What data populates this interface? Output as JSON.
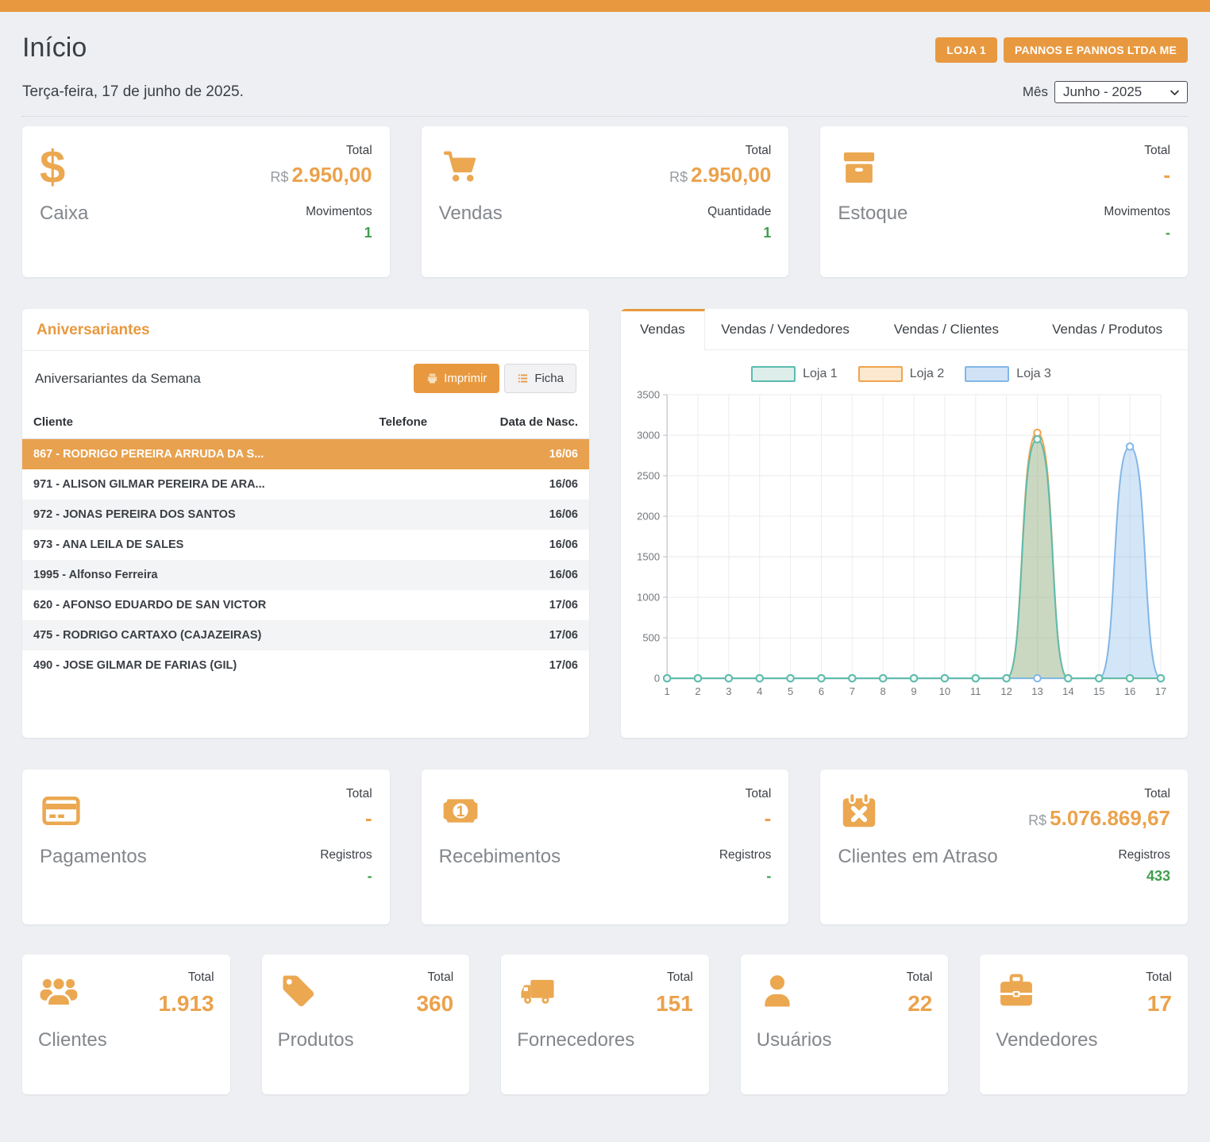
{
  "header": {
    "title": "Início",
    "date_line": "Terça-feira, 17 de junho de 2025.",
    "store_badge": "LOJA 1",
    "company_badge": "PANNOS E PANNOS LTDA ME",
    "month_label": "Mês",
    "month_selected": "Junho - 2025"
  },
  "cards_top": [
    {
      "icon": "dollar-icon",
      "label": "Caixa",
      "metric1_label": "Total",
      "metric1_prefix": "R$",
      "metric1_value": "2.950,00",
      "metric2_label": "Movimentos",
      "metric2_value": "1"
    },
    {
      "icon": "cart-icon",
      "label": "Vendas",
      "metric1_label": "Total",
      "metric1_prefix": "R$",
      "metric1_value": "2.950,00",
      "metric2_label": "Quantidade",
      "metric2_value": "1"
    },
    {
      "icon": "box-icon",
      "label": "Estoque",
      "metric1_label": "Total",
      "metric1_prefix": "",
      "metric1_value": "-",
      "metric2_label": "Movimentos",
      "metric2_value": "-"
    }
  ],
  "birthdays": {
    "panel_title": "Aniversariantes",
    "subtitle": "Aniversariantes da Semana",
    "print_button": "Imprimir",
    "ficha_button": "Ficha",
    "columns": {
      "client": "Cliente",
      "phone": "Telefone",
      "birth_date": "Data de Nasc."
    },
    "rows": [
      {
        "client": "867 - RODRIGO PEREIRA ARRUDA DA S...",
        "phone": "",
        "date": "16/06",
        "selected": true
      },
      {
        "client": "971 - ALISON GILMAR PEREIRA DE ARA...",
        "phone": "",
        "date": "16/06"
      },
      {
        "client": "972 - JONAS PEREIRA DOS SANTOS",
        "phone": "",
        "date": "16/06"
      },
      {
        "client": "973 - ANA LEILA DE SALES",
        "phone": "",
        "date": "16/06"
      },
      {
        "client": "1995 - Alfonso Ferreira",
        "phone": "",
        "date": "16/06"
      },
      {
        "client": "620 - AFONSO EDUARDO DE SAN VICTOR",
        "phone": "",
        "date": "17/06"
      },
      {
        "client": "475 - RODRIGO CARTAXO (CAJAZEIRAS)",
        "phone": "",
        "date": "17/06"
      },
      {
        "client": "490 - JOSE GILMAR DE FARIAS (GIL)",
        "phone": "",
        "date": "17/06"
      }
    ]
  },
  "sales_panel": {
    "tabs": [
      {
        "label": "Vendas",
        "active": true
      },
      {
        "label": "Vendas / Vendedores",
        "active": false
      },
      {
        "label": "Vendas / Clientes",
        "active": false
      },
      {
        "label": "Vendas / Produtos",
        "active": false
      }
    ]
  },
  "chart_data": {
    "type": "area",
    "x": [
      1,
      2,
      3,
      4,
      5,
      6,
      7,
      8,
      9,
      10,
      11,
      12,
      13,
      14,
      15,
      16,
      17
    ],
    "ylim": [
      0,
      3500
    ],
    "ytick_step": 500,
    "grid": true,
    "legend_position": "top",
    "series": [
      {
        "name": "Loja 1",
        "color": "#5cbcae",
        "fill_color": "rgba(92,188,174,0.30)",
        "legend_fill": "#ddeeea",
        "marker_fill": "#eef7f3",
        "values": [
          0,
          0,
          0,
          0,
          0,
          0,
          0,
          0,
          0,
          0,
          0,
          0,
          2950,
          0,
          0,
          0,
          0
        ]
      },
      {
        "name": "Loja 2",
        "color": "#f0a44e",
        "fill_color": "rgba(240,164,78,0.30)",
        "legend_fill": "#fce8ce",
        "marker_fill": "#ffffff",
        "values": [
          0,
          0,
          0,
          0,
          0,
          0,
          0,
          0,
          0,
          0,
          0,
          0,
          3030,
          0,
          0,
          0,
          0
        ]
      },
      {
        "name": "Loja 3",
        "color": "#82b6e7",
        "fill_color": "rgba(130,182,231,0.35)",
        "legend_fill": "#d0e3f6",
        "marker_fill": "#ffffff",
        "values": [
          0,
          0,
          0,
          0,
          0,
          0,
          0,
          0,
          0,
          0,
          0,
          0,
          0,
          0,
          0,
          2860,
          0
        ]
      }
    ]
  },
  "cards_mid": [
    {
      "icon": "credit-card-icon",
      "label": "Pagamentos",
      "metric1_label": "Total",
      "metric1_prefix": "",
      "metric1_value": "-",
      "metric2_label": "Registros",
      "metric2_value": "-"
    },
    {
      "icon": "banknote-icon",
      "label": "Recebimentos",
      "metric1_label": "Total",
      "metric1_prefix": "",
      "metric1_value": "-",
      "metric2_label": "Registros",
      "metric2_value": "-"
    },
    {
      "icon": "calendar-x-icon",
      "label": "Clientes em Atraso",
      "metric1_label": "Total",
      "metric1_prefix": "R$",
      "metric1_value": "5.076.869,67",
      "metric2_label": "Registros",
      "metric2_value": "433"
    }
  ],
  "cards_bottom": [
    {
      "icon": "users-icon",
      "label": "Clientes",
      "total_label": "Total",
      "value": "1.913"
    },
    {
      "icon": "tag-icon",
      "label": "Produtos",
      "total_label": "Total",
      "value": "360"
    },
    {
      "icon": "truck-icon",
      "label": "Fornecedores",
      "total_label": "Total",
      "value": "151"
    },
    {
      "icon": "user-icon",
      "label": "Usuários",
      "total_label": "Total",
      "value": "22"
    },
    {
      "icon": "briefcase-icon",
      "label": "Vendedores",
      "total_label": "Total",
      "value": "17"
    }
  ],
  "colors": {
    "accent": "#e8993f",
    "value_orange": "#eba24c",
    "positive_green": "#3f9e4d",
    "background": "#edeff3"
  }
}
